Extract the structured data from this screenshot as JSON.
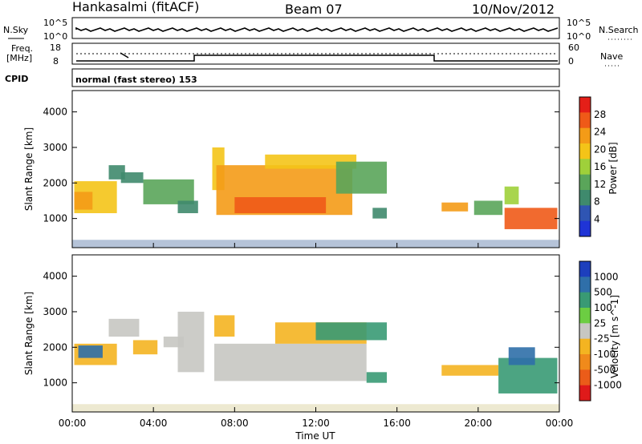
{
  "header": {
    "station": "Hankasalmi (fitACF)",
    "beam": "Beam 07",
    "date": "10/Nov/2012"
  },
  "strip_labels": {
    "nsky": "N.Sky",
    "nsearch": "N.Search",
    "freq_line1": "Freq.",
    "freq_line2": "[MHz]",
    "nave": "Nave",
    "cpid": "CPID",
    "cpid_value": "normal (fast stereo) 153"
  },
  "strip_ticks": {
    "noise_top": "10^5",
    "noise_bottom": "10^0",
    "freq_top": "18",
    "freq_bottom": "8",
    "nave_top": "60",
    "nave_bottom": "0"
  },
  "colors": {
    "power": [
      "#1f34d6",
      "#2f55b3",
      "#3f8a6d",
      "#5aa55a",
      "#9fd03a",
      "#f4c418",
      "#f49b17",
      "#ef5a18",
      "#e41f18"
    ],
    "velocity": [
      "#1d3fbd",
      "#2f6fa9",
      "#399a74",
      "#6ccd42",
      "#c7c7c2",
      "#f4b421",
      "#f08a1b",
      "#eb5c19",
      "#df1a1a"
    ]
  },
  "chart_data": [
    {
      "type": "heatmap",
      "panel": "power",
      "xlabel": "Time UT",
      "ylabel": "Slant Range [km]",
      "x_ticks": [
        "00:00",
        "04:00",
        "08:00",
        "12:00",
        "16:00",
        "20:00",
        "00:00"
      ],
      "y_ticks": [
        1000,
        2000,
        3000,
        4000
      ],
      "ylim": [
        180,
        4600
      ],
      "xlim_hours": [
        0,
        24
      ],
      "colorbar_label": "Power [dB]",
      "colorbar_ticks": [
        4,
        8,
        12,
        16,
        20,
        24,
        28
      ],
      "colorbar_range": [
        0,
        32
      ],
      "regions": [
        {
          "t0": 0.1,
          "t1": 2.2,
          "r0": 1150,
          "r1": 2050,
          "v": 18
        },
        {
          "t0": 0.1,
          "t1": 1.0,
          "r0": 1250,
          "r1": 1750,
          "v": 24
        },
        {
          "t0": 1.8,
          "t1": 2.6,
          "r0": 2100,
          "r1": 2500,
          "v": 8
        },
        {
          "t0": 2.4,
          "t1": 3.5,
          "r0": 2000,
          "r1": 2300,
          "v": 10
        },
        {
          "t0": 3.5,
          "t1": 6.0,
          "r0": 1400,
          "r1": 2100,
          "v": 12
        },
        {
          "t0": 5.2,
          "t1": 6.2,
          "r0": 1150,
          "r1": 1500,
          "v": 8
        },
        {
          "t0": 6.9,
          "t1": 7.5,
          "r0": 1800,
          "r1": 3000,
          "v": 20
        },
        {
          "t0": 7.1,
          "t1": 13.8,
          "r0": 1100,
          "r1": 2500,
          "v": 24
        },
        {
          "t0": 8.0,
          "t1": 12.5,
          "r0": 1150,
          "r1": 1600,
          "v": 28
        },
        {
          "t0": 9.5,
          "t1": 14.0,
          "r0": 2400,
          "r1": 2800,
          "v": 18
        },
        {
          "t0": 13.0,
          "t1": 15.5,
          "r0": 1700,
          "r1": 2600,
          "v": 14
        },
        {
          "t0": 14.8,
          "t1": 15.5,
          "r0": 1000,
          "r1": 1300,
          "v": 8
        },
        {
          "t0": 18.2,
          "t1": 19.5,
          "r0": 1200,
          "r1": 1450,
          "v": 24
        },
        {
          "t0": 19.8,
          "t1": 21.2,
          "r0": 1100,
          "r1": 1500,
          "v": 14
        },
        {
          "t0": 21.3,
          "t1": 23.9,
          "r0": 700,
          "r1": 1300,
          "v": 26
        },
        {
          "t0": 21.3,
          "t1": 22.0,
          "r0": 1400,
          "r1": 1900,
          "v": 16
        }
      ]
    },
    {
      "type": "heatmap",
      "panel": "velocity",
      "xlabel": "Time UT",
      "ylabel": "Slant Range [km]",
      "x_ticks": [
        "00:00",
        "04:00",
        "08:00",
        "12:00",
        "16:00",
        "20:00",
        "00:00"
      ],
      "y_ticks": [
        1000,
        2000,
        3000,
        4000
      ],
      "ylim": [
        180,
        4600
      ],
      "xlim_hours": [
        0,
        24
      ],
      "colorbar_label": "Velocity [m s^-1]",
      "colorbar_ticks": [
        "1000",
        "500",
        "100",
        "25",
        "-25",
        "-100",
        "-500",
        "-1000"
      ],
      "regions": [
        {
          "t0": 0.1,
          "t1": 2.2,
          "r0": 1500,
          "r1": 2100,
          "v": -100
        },
        {
          "t0": 0.3,
          "t1": 1.5,
          "r0": 1700,
          "r1": 2050,
          "v": 500
        },
        {
          "t0": 1.8,
          "t1": 3.3,
          "r0": 2300,
          "r1": 2800,
          "v": 0
        },
        {
          "t0": 3.0,
          "t1": 4.2,
          "r0": 1800,
          "r1": 2200,
          "v": -100
        },
        {
          "t0": 4.5,
          "t1": 5.5,
          "r0": 2000,
          "r1": 2300,
          "v": 0
        },
        {
          "t0": 5.2,
          "t1": 6.5,
          "r0": 1300,
          "r1": 3000,
          "v": 0
        },
        {
          "t0": 7.0,
          "t1": 14.5,
          "r0": 1050,
          "r1": 2100,
          "v": 0
        },
        {
          "t0": 7.0,
          "t1": 8.0,
          "r0": 2300,
          "r1": 2900,
          "v": -100
        },
        {
          "t0": 10.0,
          "t1": 14.5,
          "r0": 2100,
          "r1": 2700,
          "v": -100
        },
        {
          "t0": 12.0,
          "t1": 15.5,
          "r0": 2200,
          "r1": 2700,
          "v": 100
        },
        {
          "t0": 14.5,
          "t1": 15.5,
          "r0": 1000,
          "r1": 1300,
          "v": 100
        },
        {
          "t0": 18.2,
          "t1": 21.0,
          "r0": 1200,
          "r1": 1500,
          "v": -100
        },
        {
          "t0": 21.0,
          "t1": 23.9,
          "r0": 700,
          "r1": 1700,
          "v": 100
        },
        {
          "t0": 21.5,
          "t1": 22.8,
          "r0": 1500,
          "r1": 2000,
          "v": 500
        }
      ]
    }
  ]
}
